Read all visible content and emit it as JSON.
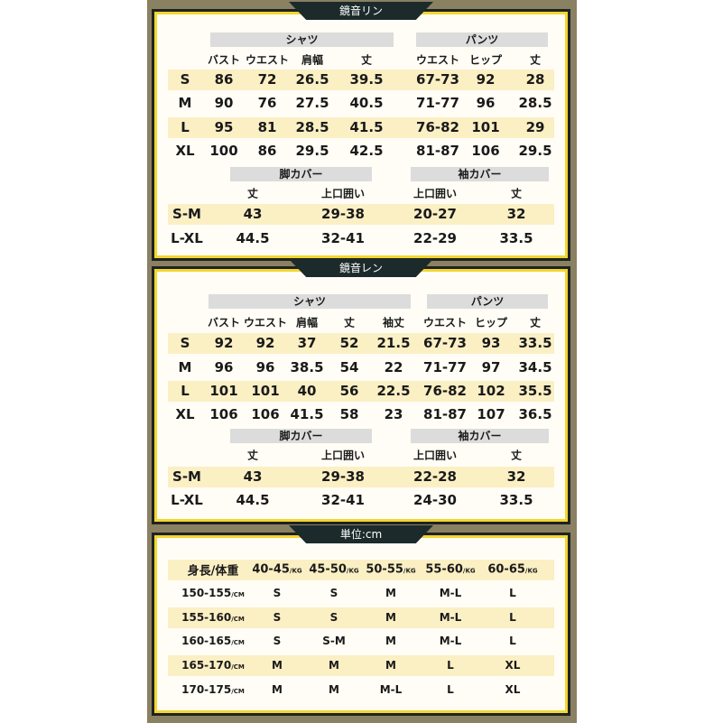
{
  "panels": [
    {
      "title": "鏡音リン",
      "shirt_label": "シャツ",
      "pants_label": "パンツ",
      "headers": [
        "バスト",
        "ウエスト",
        "肩幅",
        "丈",
        "ウエスト",
        "ヒップ",
        "丈"
      ],
      "rows": [
        [
          "S",
          "86",
          "72",
          "26.5",
          "39.5",
          "67-73",
          "92",
          "28"
        ],
        [
          "M",
          "90",
          "76",
          "27.5",
          "40.5",
          "71-77",
          "96",
          "28.5"
        ],
        [
          "L",
          "95",
          "81",
          "28.5",
          "41.5",
          "76-82",
          "101",
          "29"
        ],
        [
          "XL",
          "100",
          "86",
          "29.5",
          "42.5",
          "81-87",
          "106",
          "29.5"
        ]
      ],
      "leg_cover_label": "脚カバー",
      "sleeve_cover_label": "袖カバー",
      "cover_headers": [
        "丈",
        "上口囲い",
        "上口囲い",
        "丈"
      ],
      "cover_rows": [
        [
          "S-M",
          "43",
          "29-38",
          "20-27",
          "32"
        ],
        [
          "L-XL",
          "44.5",
          "32-41",
          "22-29",
          "33.5"
        ]
      ]
    },
    {
      "title": "鏡音レン",
      "shirt_label": "シャツ",
      "pants_label": "パンツ",
      "headers": [
        "バスト",
        "ウエスト",
        "肩幅",
        "丈",
        "袖丈",
        "ウエスト",
        "ヒップ",
        "丈"
      ],
      "rows": [
        [
          "S",
          "92",
          "92",
          "37",
          "52",
          "21.5",
          "67-73",
          "93",
          "33.5"
        ],
        [
          "M",
          "96",
          "96",
          "38.5",
          "54",
          "22",
          "71-77",
          "97",
          "34.5"
        ],
        [
          "L",
          "101",
          "101",
          "40",
          "56",
          "22.5",
          "76-82",
          "102",
          "35.5"
        ],
        [
          "XL",
          "106",
          "106",
          "41.5",
          "58",
          "23",
          "81-87",
          "107",
          "36.5"
        ]
      ],
      "leg_cover_label": "脚カバー",
      "sleeve_cover_label": "袖カバー",
      "cover_headers": [
        "丈",
        "上口囲い",
        "上口囲い",
        "丈"
      ],
      "cover_rows": [
        [
          "S-M",
          "43",
          "29-38",
          "22-28",
          "32"
        ],
        [
          "L-XL",
          "44.5",
          "32-41",
          "24-30",
          "33.5"
        ]
      ]
    }
  ],
  "size_guide": {
    "title": "単位:cm",
    "corner": "身長/体重",
    "weights": [
      "40-45",
      "45-50",
      "50-55",
      "55-60",
      "60-65"
    ],
    "weight_unit": "/KG",
    "height_unit": "/CM",
    "rows": [
      {
        "height": "150-155",
        "sizes": [
          "S",
          "S",
          "M",
          "M-L",
          "L"
        ]
      },
      {
        "height": "155-160",
        "sizes": [
          "S",
          "S",
          "M",
          "M-L",
          "L"
        ]
      },
      {
        "height": "160-165",
        "sizes": [
          "S",
          "S-M",
          "M",
          "M-L",
          "L"
        ]
      },
      {
        "height": "165-170",
        "sizes": [
          "M",
          "M",
          "M",
          "L",
          "XL"
        ]
      },
      {
        "height": "170-175",
        "sizes": [
          "M",
          "M",
          "M-L",
          "L",
          "XL"
        ]
      }
    ]
  },
  "colors": {
    "background": "#8a8062",
    "border": "#f3d630",
    "highlight": "#fbefc4",
    "tab": "#1c2a2b"
  }
}
